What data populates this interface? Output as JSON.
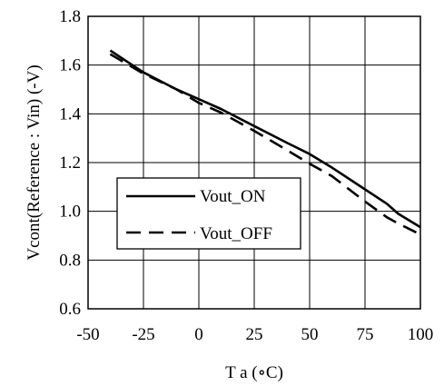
{
  "chart_data": {
    "type": "line",
    "xlabel": "T a (∘C)",
    "ylabel": "Vcont(Reference : Vin)  (-V)",
    "xlim": [
      -50,
      100
    ],
    "ylim": [
      0.6,
      1.8
    ],
    "xticks": [
      -50,
      -25,
      0,
      25,
      50,
      75,
      100
    ],
    "yticks": [
      0.6,
      0.8,
      1.0,
      1.2,
      1.4,
      1.6,
      1.8
    ],
    "xtick_labels": [
      "-50",
      "-25",
      "0",
      "25",
      "50",
      "75",
      "100"
    ],
    "ytick_labels": [
      "0.6",
      "0.8",
      "1.0",
      "1.2",
      "1.4",
      "1.6",
      "1.8"
    ],
    "grid": true,
    "legend_position": "center-left",
    "series": [
      {
        "name": "Vout_ON",
        "style": "solid",
        "color": "#000000",
        "x": [
          -40,
          -25,
          -10,
          0,
          10,
          25,
          40,
          50,
          60,
          75,
          85,
          90,
          100
        ],
        "y": [
          1.66,
          1.57,
          1.5,
          1.46,
          1.42,
          1.35,
          1.28,
          1.235,
          1.18,
          1.09,
          1.03,
          0.99,
          0.935
        ]
      },
      {
        "name": "Vout_OFF",
        "style": "dashed",
        "color": "#000000",
        "x": [
          -40,
          -25,
          -10,
          0,
          10,
          25,
          40,
          50,
          60,
          75,
          85,
          90,
          100
        ],
        "y": [
          1.645,
          1.565,
          1.5,
          1.445,
          1.405,
          1.33,
          1.25,
          1.195,
          1.145,
          1.04,
          0.975,
          0.95,
          0.905
        ]
      }
    ]
  }
}
